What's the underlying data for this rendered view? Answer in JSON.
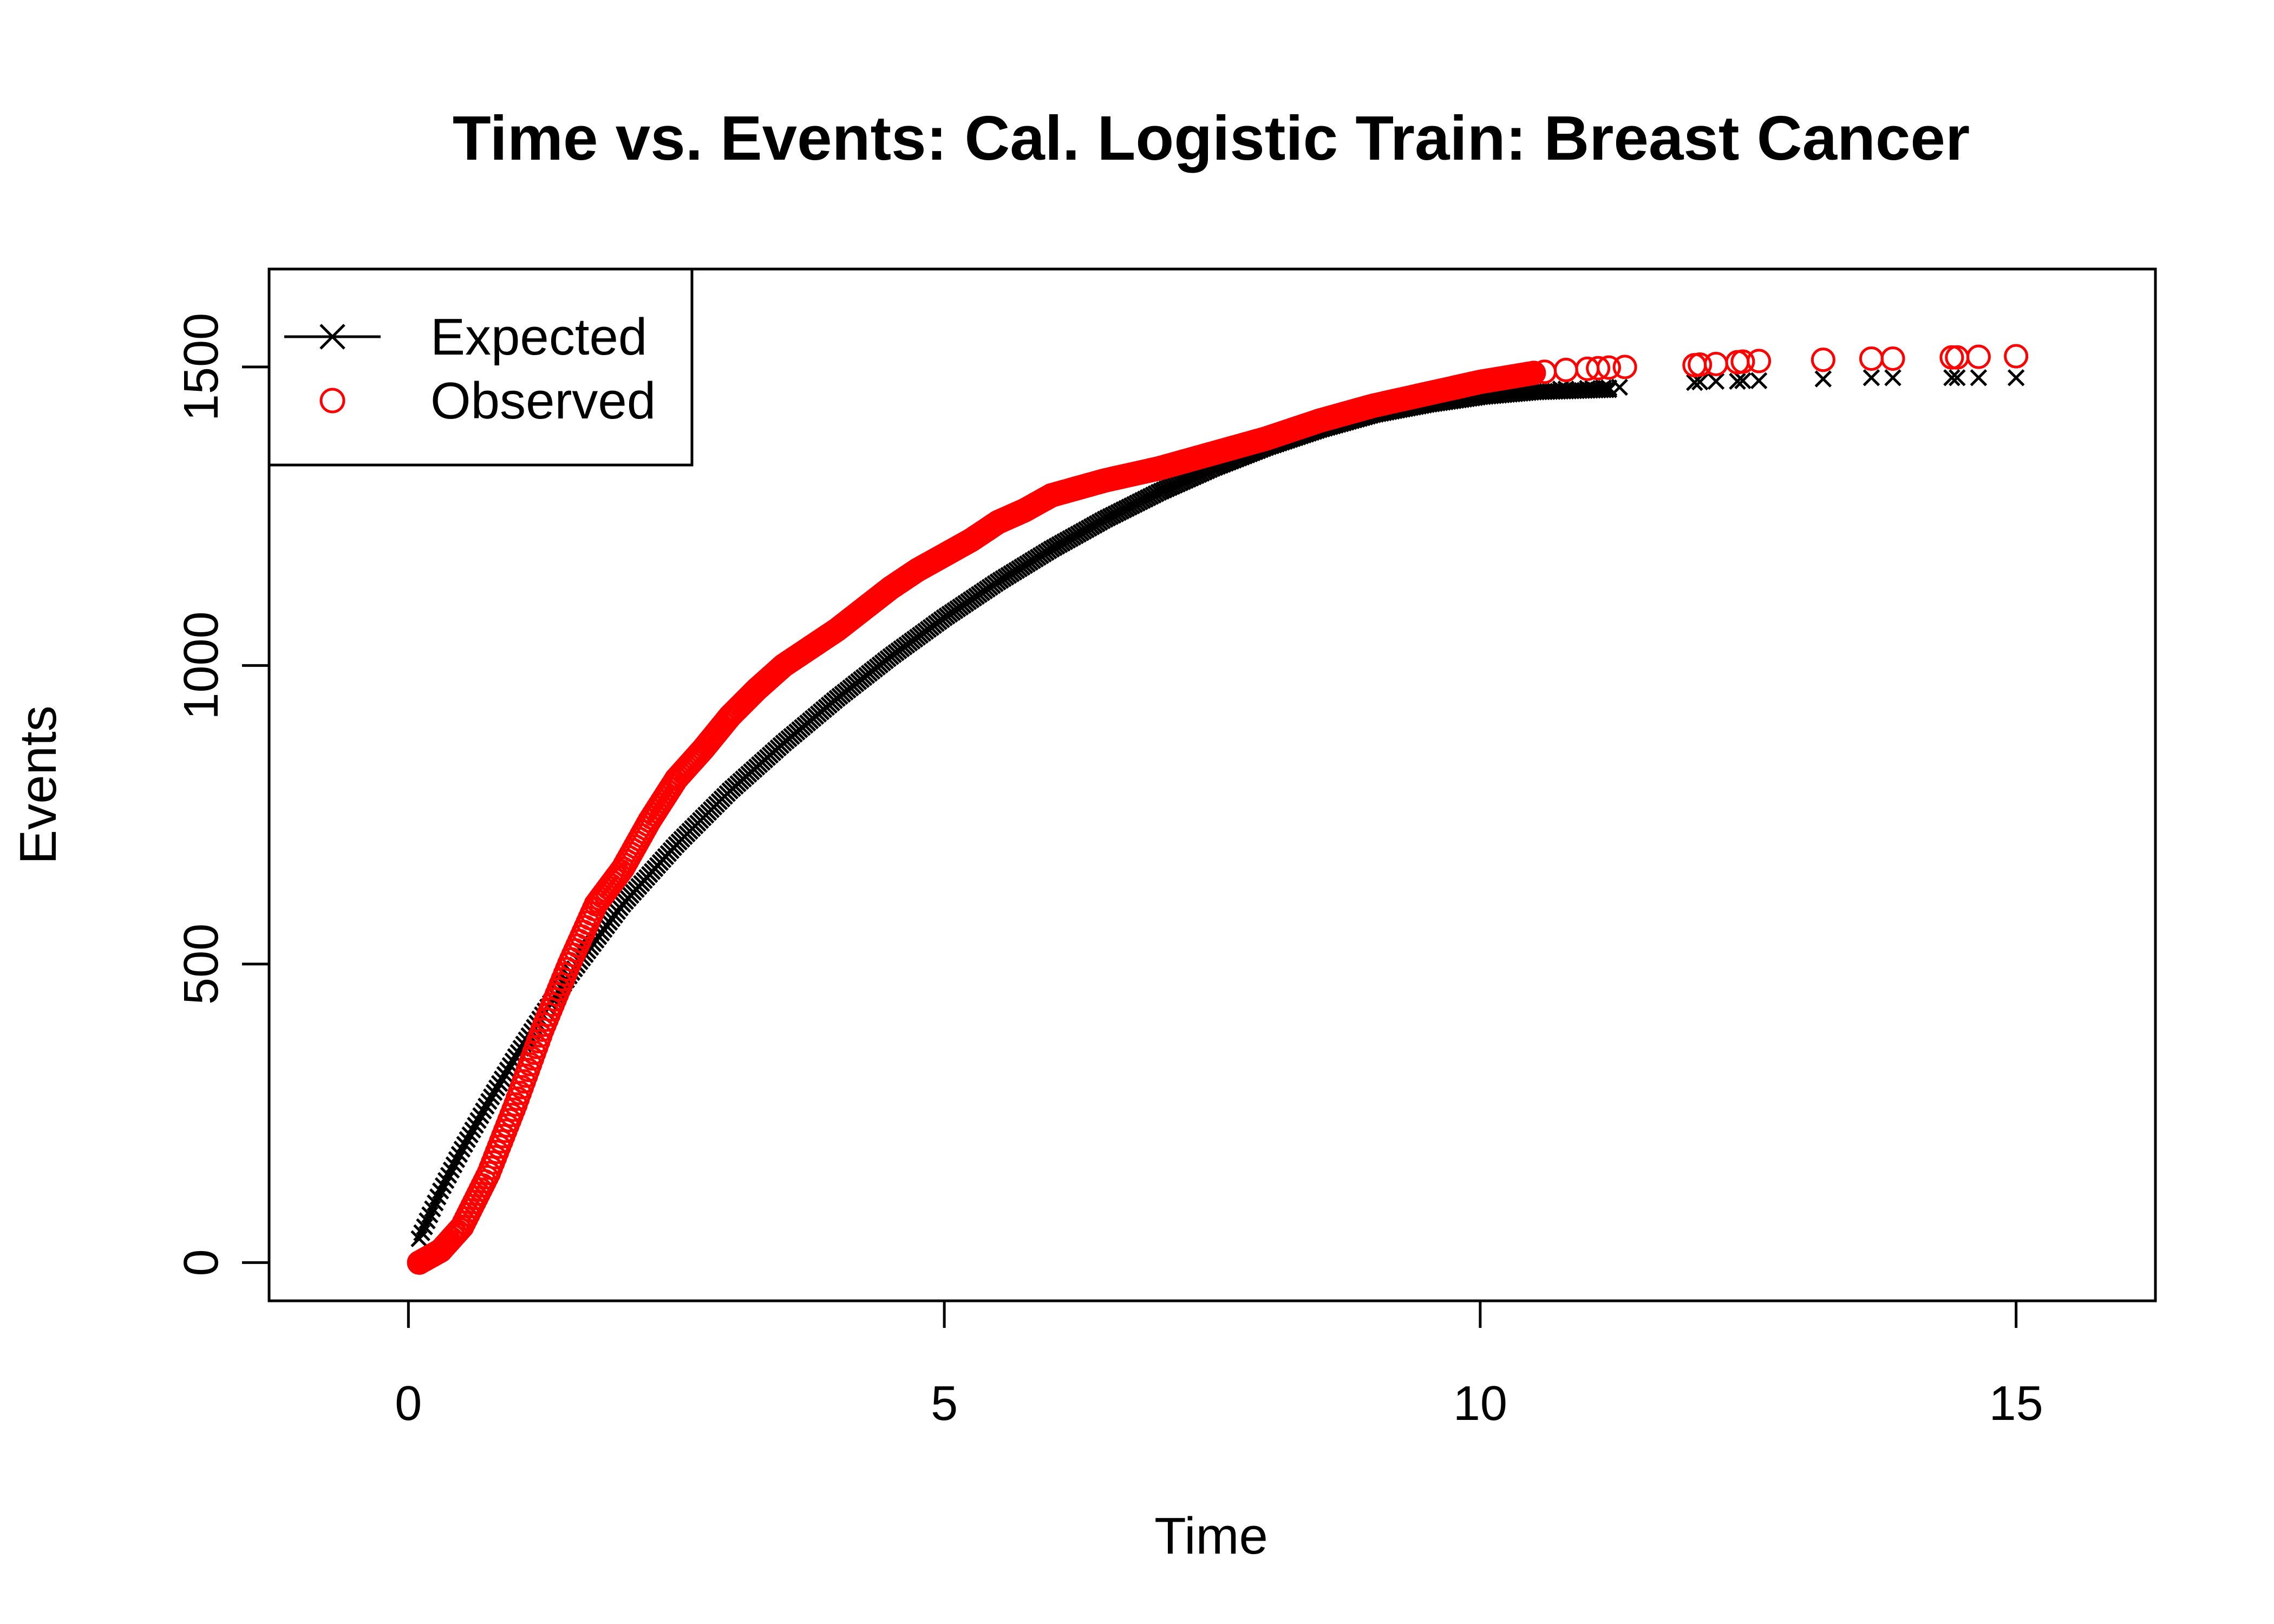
{
  "chart_data": {
    "type": "scatter",
    "title": "Time vs. Events: Cal. Logistic Train: Breast Cancer",
    "xlabel": "Time",
    "ylabel": "Events",
    "xlim": [
      -1.3,
      16.3
    ],
    "ylim": [
      -64,
      1664
    ],
    "xticks": [
      0,
      5,
      10,
      15
    ],
    "yticks": [
      0,
      500,
      1000,
      1500
    ],
    "grid": false,
    "legend": {
      "position": "top-left",
      "entries": [
        {
          "label": "Expected",
          "marker": "cross-with-line",
          "color": "#000000"
        },
        {
          "label": "Observed",
          "marker": "open-circle",
          "color": "#ff0000"
        }
      ]
    },
    "series": [
      {
        "name": "Expected",
        "color": "#000000",
        "marker": "x",
        "dense_curve": [
          [
            0.1,
            40
          ],
          [
            0.3,
            120
          ],
          [
            0.5,
            190
          ],
          [
            0.75,
            270
          ],
          [
            1.0,
            345
          ],
          [
            1.25,
            415
          ],
          [
            1.5,
            480
          ],
          [
            1.75,
            540
          ],
          [
            2.0,
            600
          ],
          [
            2.5,
            700
          ],
          [
            3.0,
            790
          ],
          [
            3.5,
            870
          ],
          [
            4.0,
            945
          ],
          [
            4.5,
            1015
          ],
          [
            5.0,
            1080
          ],
          [
            5.5,
            1140
          ],
          [
            6.0,
            1195
          ],
          [
            6.5,
            1245
          ],
          [
            7.0,
            1290
          ],
          [
            7.5,
            1330
          ],
          [
            8.0,
            1365
          ],
          [
            8.5,
            1395
          ],
          [
            9.0,
            1420
          ],
          [
            9.5,
            1437
          ],
          [
            10.0,
            1450
          ],
          [
            10.5,
            1458
          ],
          [
            11.2,
            1462
          ]
        ],
        "sparse_points": [
          [
            10.75,
            1463
          ],
          [
            10.8,
            1463
          ],
          [
            11.0,
            1464
          ],
          [
            11.05,
            1464
          ],
          [
            11.15,
            1465
          ],
          [
            11.2,
            1465
          ],
          [
            11.3,
            1466
          ],
          [
            12.0,
            1474
          ],
          [
            12.05,
            1475
          ],
          [
            12.2,
            1476
          ],
          [
            12.4,
            1476
          ],
          [
            12.45,
            1477
          ],
          [
            12.6,
            1477
          ],
          [
            13.2,
            1480
          ],
          [
            13.65,
            1482
          ],
          [
            13.85,
            1482
          ],
          [
            14.4,
            1482
          ],
          [
            14.45,
            1482
          ],
          [
            14.65,
            1482
          ],
          [
            15.0,
            1482
          ]
        ]
      },
      {
        "name": "Observed",
        "color": "#ff0000",
        "marker": "o",
        "dense_curve": [
          [
            0.1,
            0
          ],
          [
            0.3,
            20
          ],
          [
            0.5,
            60
          ],
          [
            0.75,
            150
          ],
          [
            1.0,
            265
          ],
          [
            1.25,
            390
          ],
          [
            1.5,
            500
          ],
          [
            1.75,
            600
          ],
          [
            2.0,
            660
          ],
          [
            2.25,
            740
          ],
          [
            2.5,
            810
          ],
          [
            2.75,
            860
          ],
          [
            3.0,
            915
          ],
          [
            3.25,
            960
          ],
          [
            3.5,
            1000
          ],
          [
            3.75,
            1030
          ],
          [
            4.0,
            1060
          ],
          [
            4.25,
            1095
          ],
          [
            4.5,
            1130
          ],
          [
            4.75,
            1160
          ],
          [
            5.0,
            1185
          ],
          [
            5.25,
            1210
          ],
          [
            5.5,
            1240
          ],
          [
            5.75,
            1260
          ],
          [
            6.0,
            1285
          ],
          [
            6.5,
            1310
          ],
          [
            7.0,
            1330
          ],
          [
            7.5,
            1355
          ],
          [
            8.0,
            1380
          ],
          [
            8.5,
            1410
          ],
          [
            9.0,
            1435
          ],
          [
            9.5,
            1455
          ],
          [
            10.0,
            1475
          ],
          [
            10.5,
            1490
          ]
        ],
        "sparse_points": [
          [
            10.6,
            1492
          ],
          [
            10.8,
            1495
          ],
          [
            11.0,
            1497
          ],
          [
            11.1,
            1498
          ],
          [
            11.2,
            1499
          ],
          [
            11.35,
            1500
          ],
          [
            12.0,
            1503
          ],
          [
            12.05,
            1504
          ],
          [
            12.2,
            1505
          ],
          [
            12.4,
            1508
          ],
          [
            12.45,
            1509
          ],
          [
            12.6,
            1510
          ],
          [
            13.2,
            1512
          ],
          [
            13.65,
            1514
          ],
          [
            13.85,
            1514
          ],
          [
            14.4,
            1516
          ],
          [
            14.45,
            1516
          ],
          [
            14.65,
            1517
          ],
          [
            15.0,
            1518
          ]
        ]
      }
    ]
  }
}
